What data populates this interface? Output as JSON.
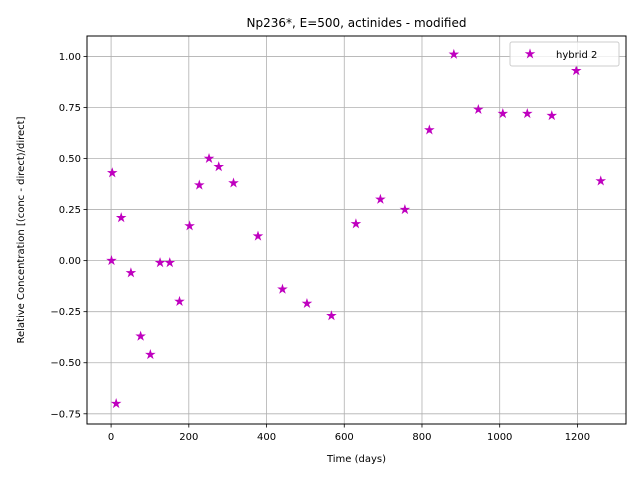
{
  "chart_data": {
    "type": "scatter",
    "title": "Np236*, E=500, actinides - modified",
    "xlabel": "Time (days)",
    "ylabel": "Relative Concentration [(conc - direct)/direct]",
    "xlim": [
      -62,
      1325
    ],
    "ylim": [
      -0.8,
      1.1
    ],
    "xticks": [
      0,
      200,
      400,
      600,
      800,
      1000,
      1200
    ],
    "xtick_labels": [
      "0",
      "200",
      "400",
      "600",
      "800",
      "1000",
      "1200"
    ],
    "yticks": [
      -0.75,
      -0.5,
      -0.25,
      0.0,
      0.25,
      0.5,
      0.75,
      1.0
    ],
    "ytick_labels": [
      "−0.75",
      "−0.50",
      "−0.25",
      "0.00",
      "0.25",
      "0.50",
      "0.75",
      "1.00"
    ],
    "grid": true,
    "legend_position": "top-right",
    "series": [
      {
        "name": "hybrid 2",
        "color": "#bf00bf",
        "marker": "star",
        "x": [
          1,
          3,
          13,
          26,
          51,
          76,
          101,
          126,
          151,
          176,
          202,
          227,
          252,
          277,
          315,
          378,
          441,
          504,
          567,
          630,
          693,
          756,
          819,
          882,
          945,
          1008,
          1071,
          1134,
          1197,
          1260
        ],
        "y": [
          0.0,
          0.43,
          -0.7,
          0.21,
          -0.06,
          -0.37,
          -0.46,
          -0.01,
          -0.01,
          -0.2,
          0.17,
          0.37,
          0.5,
          0.46,
          0.38,
          0.12,
          -0.14,
          -0.21,
          -0.27,
          0.18,
          0.3,
          0.25,
          0.64,
          1.01,
          0.74,
          0.72,
          0.72,
          0.71,
          0.93,
          0.39
        ]
      }
    ]
  }
}
